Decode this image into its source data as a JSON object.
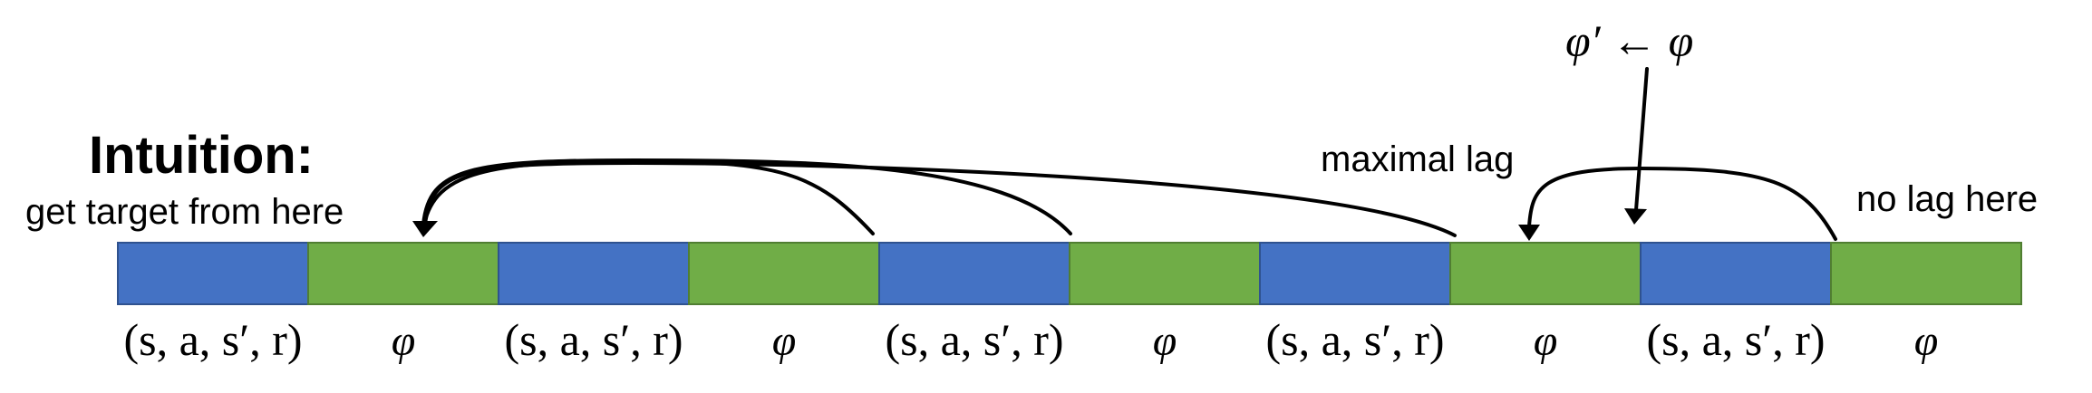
{
  "title": "Intuition:",
  "annotations": {
    "get_target": "get target from here",
    "maximal_lag": "maximal lag",
    "no_lag": "no lag here",
    "update_rule": "φ′ ← φ"
  },
  "buffer": {
    "blue_color": "#4472C4",
    "green_color": "#70AD47",
    "segments": [
      {
        "type": "transition",
        "label": "(s, a, s′, r)"
      },
      {
        "type": "params",
        "label": "φ"
      },
      {
        "type": "transition",
        "label": "(s, a, s′, r)"
      },
      {
        "type": "params",
        "label": "φ"
      },
      {
        "type": "transition",
        "label": "(s, a, s′, r)"
      },
      {
        "type": "params",
        "label": "φ"
      },
      {
        "type": "transition",
        "label": "(s, a, s′, r)"
      },
      {
        "type": "params",
        "label": "φ"
      },
      {
        "type": "transition",
        "label": "(s, a, s′, r)"
      },
      {
        "type": "params",
        "label": "φ"
      }
    ]
  }
}
